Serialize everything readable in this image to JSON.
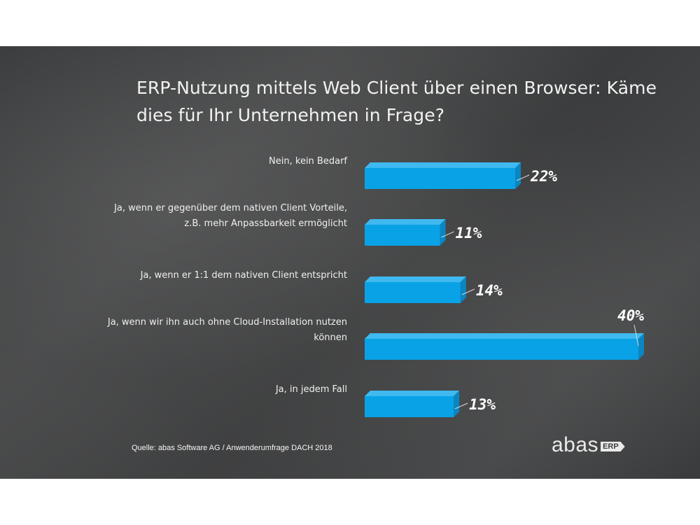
{
  "chart_data": {
    "type": "bar",
    "orientation": "horizontal",
    "title": "ERP-Nutzung mittels Web Client über einen Browser: Käme dies für Ihr Unternehmen in Frage?",
    "categories": [
      "Nein, kein Bedarf",
      "Ja, wenn er gegenüber dem nativen Client Vorteile, z.B. mehr Anpassbarkeit ermöglicht",
      "Ja, wenn er 1:1 dem nativen Client entspricht",
      "Ja, wenn wir ihn auch ohne Cloud-Installation nutzen können",
      "Ja, in jedem Fall"
    ],
    "category_lines": [
      [
        "Nein, kein Bedarf"
      ],
      [
        "Ja, wenn er gegenüber dem nativen Client Vorteile,",
        "z.B. mehr Anpassbarkeit ermöglicht"
      ],
      [
        "Ja, wenn er 1:1 dem nativen Client entspricht"
      ],
      [
        "Ja, wenn wir ihn auch ohne Cloud-Installation nutzen",
        "können"
      ],
      [
        "Ja, in jedem Fall"
      ]
    ],
    "values": [
      22,
      11,
      14,
      40,
      13
    ],
    "value_labels": [
      "22%",
      "11%",
      "14%",
      "40%",
      "13%"
    ],
    "unit": "%",
    "xlim": [
      0,
      40
    ],
    "grid": false,
    "legend": "none",
    "colors": {
      "bar_front": "#0aa2e6",
      "bar_top": "#3fb9ef",
      "bar_side": "#0a86c2",
      "text": "#f0f0f0"
    }
  },
  "source": "Quelle: abas Software AG / Anwenderumfrage DACH 2018",
  "brand": {
    "word": "abas",
    "tag": "ERP"
  }
}
